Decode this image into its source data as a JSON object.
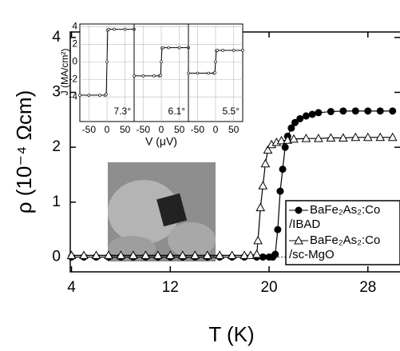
{
  "chart_data": [
    {
      "type": "line",
      "x_label": "T (K)",
      "y_label": "ρ (10⁻⁴ Ωcm)",
      "xlim": [
        3.9,
        30.6
      ],
      "ylim": [
        -0.27,
        4.1
      ],
      "xticks": [
        4,
        12,
        20,
        28
      ],
      "yticks": [
        0,
        1,
        2,
        3,
        4
      ],
      "legend": "right",
      "series": [
        {
          "name": "BaFe₂As₂:Co/IBAD",
          "marker": "filled-circle",
          "color": "#000000",
          "x": [
            4,
            5,
            6,
            7,
            8,
            9,
            10,
            11,
            12,
            13,
            14,
            15,
            16,
            17,
            18,
            19,
            19.5,
            20,
            20.3,
            20.5,
            20.7,
            20.9,
            21.1,
            21.3,
            21.5,
            21.8,
            22.1,
            22.5,
            23,
            23.5,
            24,
            25,
            26,
            27,
            28,
            29,
            30
          ],
          "values": [
            0,
            0,
            0,
            0,
            0,
            0,
            0,
            0,
            0,
            0,
            0,
            0,
            0,
            0,
            0,
            0,
            0,
            0,
            0,
            0.05,
            0.5,
            1.2,
            1.6,
            2.0,
            2.2,
            2.35,
            2.45,
            2.52,
            2.57,
            2.6,
            2.63,
            2.65,
            2.66,
            2.66,
            2.66,
            2.66,
            2.66
          ]
        },
        {
          "name": "BaFe₂As₂:Co/sc-MgO",
          "marker": "open-triangle",
          "color": "#000000",
          "x": [
            4,
            5,
            6,
            7,
            8,
            9,
            10,
            11,
            12,
            13,
            14,
            15,
            16,
            17,
            18,
            18.5,
            19,
            19.1,
            19.3,
            19.5,
            19.7,
            19.9,
            20.2,
            20.6,
            21,
            21.5,
            22,
            23,
            24,
            25,
            26,
            27,
            28,
            29,
            30
          ],
          "values": [
            0.03,
            0.03,
            0.03,
            0.03,
            0.03,
            0.03,
            0.03,
            0.03,
            0.03,
            0.03,
            0.03,
            0.03,
            0.03,
            0.03,
            0.03,
            0.03,
            0.05,
            0.3,
            0.9,
            1.3,
            1.7,
            1.95,
            2.05,
            2.09,
            2.12,
            2.13,
            2.15,
            2.16,
            2.16,
            2.17,
            2.17,
            2.18,
            2.18,
            2.18,
            2.18
          ]
        }
      ]
    },
    {
      "type": "line",
      "x_label": "V (μV)",
      "y_label": "J (MA/cm²)",
      "xlim": [
        -75,
        75
      ],
      "ylim": [
        -6.8,
        4.3
      ],
      "xticks": [
        -50,
        0,
        50
      ],
      "yticks": [
        -4,
        -2,
        0,
        2,
        4
      ],
      "panels": [
        {
          "label": "7.3°",
          "x": [
            -75,
            -50,
            -20,
            -5,
            -2,
            0,
            2,
            5,
            20,
            50,
            75
          ],
          "values": [
            -3.8,
            -3.8,
            -3.8,
            -3.8,
            -3.7,
            0,
            3.6,
            3.7,
            3.7,
            3.7,
            3.7
          ]
        },
        {
          "label": "6.1°",
          "x": [
            -75,
            -50,
            -20,
            -5,
            -2,
            0,
            2,
            5,
            20,
            50,
            75
          ],
          "values": [
            -1.6,
            -1.6,
            -1.6,
            -1.6,
            -1.55,
            0,
            1.55,
            1.6,
            1.6,
            1.6,
            1.6
          ]
        },
        {
          "label": "5.5°",
          "x": [
            -75,
            -50,
            -20,
            -5,
            -2,
            0,
            2,
            5,
            20,
            50,
            75
          ],
          "values": [
            -1.3,
            -1.3,
            -1.3,
            -1.3,
            -1.25,
            0,
            1.25,
            1.3,
            1.3,
            1.3,
            1.3
          ]
        }
      ]
    }
  ]
}
